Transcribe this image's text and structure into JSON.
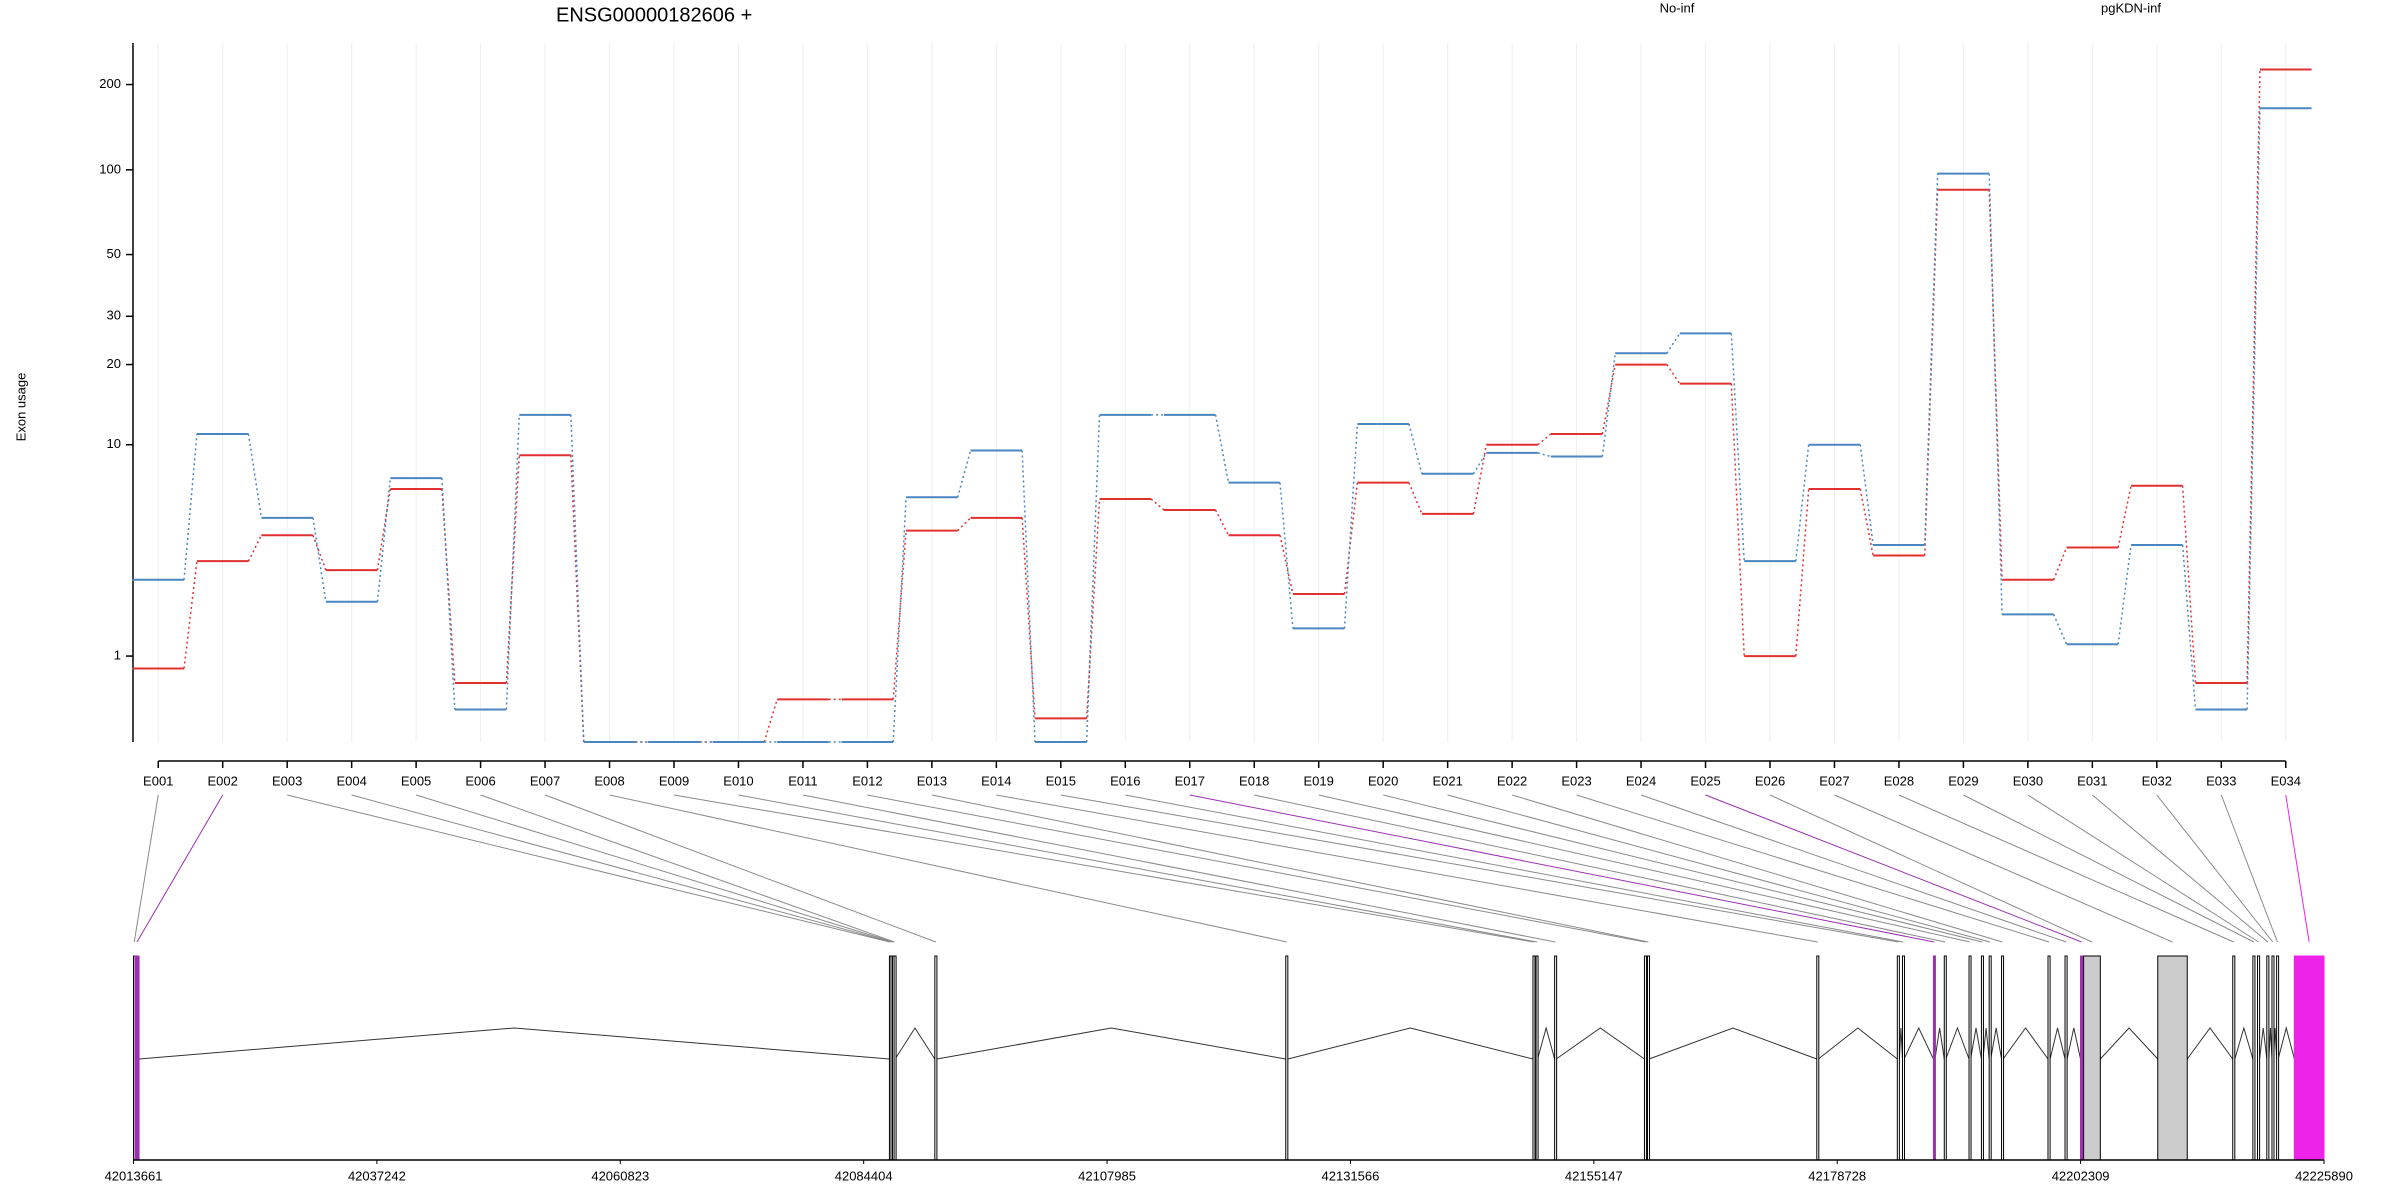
{
  "chart_data": [
    {
      "type": "step",
      "title": "ENSG00000182606 +",
      "ylabel": "Exon usage",
      "yscale": "log1p",
      "grid": true,
      "categories": [
        "E001",
        "E002",
        "E003",
        "E004",
        "E005",
        "E006",
        "E007",
        "E008",
        "E009",
        "E010",
        "E011",
        "E012",
        "E013",
        "E014",
        "E015",
        "E016",
        "E017",
        "E018",
        "E019",
        "E020",
        "E021",
        "E022",
        "E023",
        "E024",
        "E025",
        "E026",
        "E027",
        "E028",
        "E029",
        "E030",
        "E031",
        "E032",
        "E033",
        "E034"
      ],
      "series": [
        {
          "name": "No-inf",
          "color": "#e03131",
          "values": [
            0.81,
            3.3,
            4.3,
            3.0,
            6.7,
            0.61,
            9.1,
            0,
            0,
            0,
            0.41,
            0.41,
            4.5,
            5.1,
            0.21,
            6.1,
            5.5,
            4.3,
            2.3,
            7.1,
            5.3,
            10,
            11,
            20,
            17,
            1.0,
            6.7,
            3.5,
            85,
            2.7,
            3.8,
            6.9,
            0.61,
            226
          ]
        },
        {
          "name": "pgKDN-inf",
          "color": "#4a86c0",
          "values": [
            2.7,
            11,
            5.1,
            2.1,
            7.4,
            0.3,
            13,
            0,
            0,
            0,
            0,
            0,
            6.2,
            9.5,
            0,
            13,
            13,
            7.1,
            1.5,
            12,
            7.7,
            9.3,
            9.0,
            22,
            26,
            3.3,
            10,
            3.9,
            97,
            1.8,
            1.2,
            3.9,
            0.3,
            165
          ]
        }
      ],
      "ylim": [
        0,
        280
      ],
      "yticks": [
        1,
        10,
        20,
        30,
        50,
        100,
        200
      ]
    },
    {
      "type": "gene_model",
      "xlim": [
        42013661,
        42225890
      ],
      "xticks": [
        42013661,
        42037242,
        42060823,
        42084404,
        42107985,
        42131566,
        42155147,
        42178728,
        42202309,
        42225890
      ],
      "exon_starts": [
        42013661,
        42013800,
        42086900,
        42087050,
        42087200,
        42087350,
        42091300,
        42125300,
        42149250,
        42149550,
        42151350,
        42160050,
        42160350,
        42176750,
        42184550,
        42185050,
        42188050,
        42189100,
        42191500,
        42192700,
        42193450,
        42194650,
        42199150,
        42200800,
        42202300,
        42202600,
        42209783,
        42217050,
        42219000,
        42219450,
        42220350,
        42220850,
        42221300,
        42223018
      ],
      "exon_ends": [
        42013800,
        42014200,
        42087000,
        42087150,
        42087300,
        42087450,
        42091500,
        42125500,
        42149400,
        42149700,
        42151500,
        42160200,
        42160500,
        42176900,
        42184750,
        42185200,
        42188200,
        42189250,
        42191650,
        42192850,
        42193600,
        42194800,
        42199350,
        42201000,
        42202500,
        42204218,
        42212640,
        42217250,
        42219200,
        42219650,
        42220550,
        42221000,
        42221450,
        42225890
      ],
      "exon_colors": [
        "#ffffff",
        "#9b30b0",
        "#ffffff",
        "#ffffff",
        "#ffffff",
        "#ffffff",
        "#ffffff",
        "#ffffff",
        "#ffffff",
        "#ffffff",
        "#ffffff",
        "#ffffff",
        "#ffffff",
        "#ffffff",
        "#ffffff",
        "#ffffff",
        "#9b30b0",
        "#ffffff",
        "#ffffff",
        "#ffffff",
        "#ffffff",
        "#ffffff",
        "#ffffff",
        "#ffffff",
        "#9b30b0",
        "#cccccc",
        "#cccccc",
        "#ffffff",
        "#ffffff",
        "#ffffff",
        "#ffffff",
        "#ffffff",
        "#ffffff",
        "#ee22e8"
      ]
    }
  ]
}
